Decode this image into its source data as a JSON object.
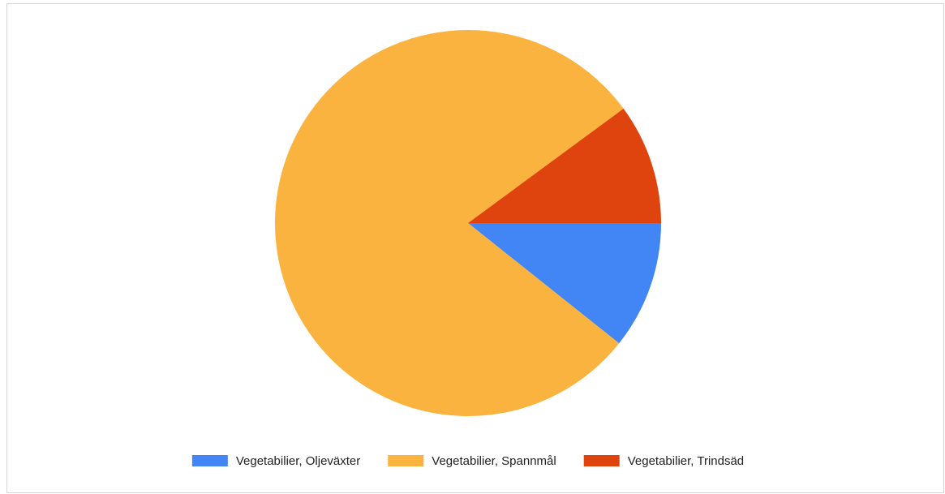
{
  "chart_data": {
    "type": "pie",
    "categories": [
      "Vegetabilier, Oljeväxter",
      "Vegetabilier, Spannmål",
      "Vegetabilier, Trindsäd"
    ],
    "values": [
      10.7,
      79.2,
      10.1
    ],
    "colors": [
      "#4285f4",
      "#fab33f",
      "#e0440e"
    ],
    "legend": "bottom"
  }
}
